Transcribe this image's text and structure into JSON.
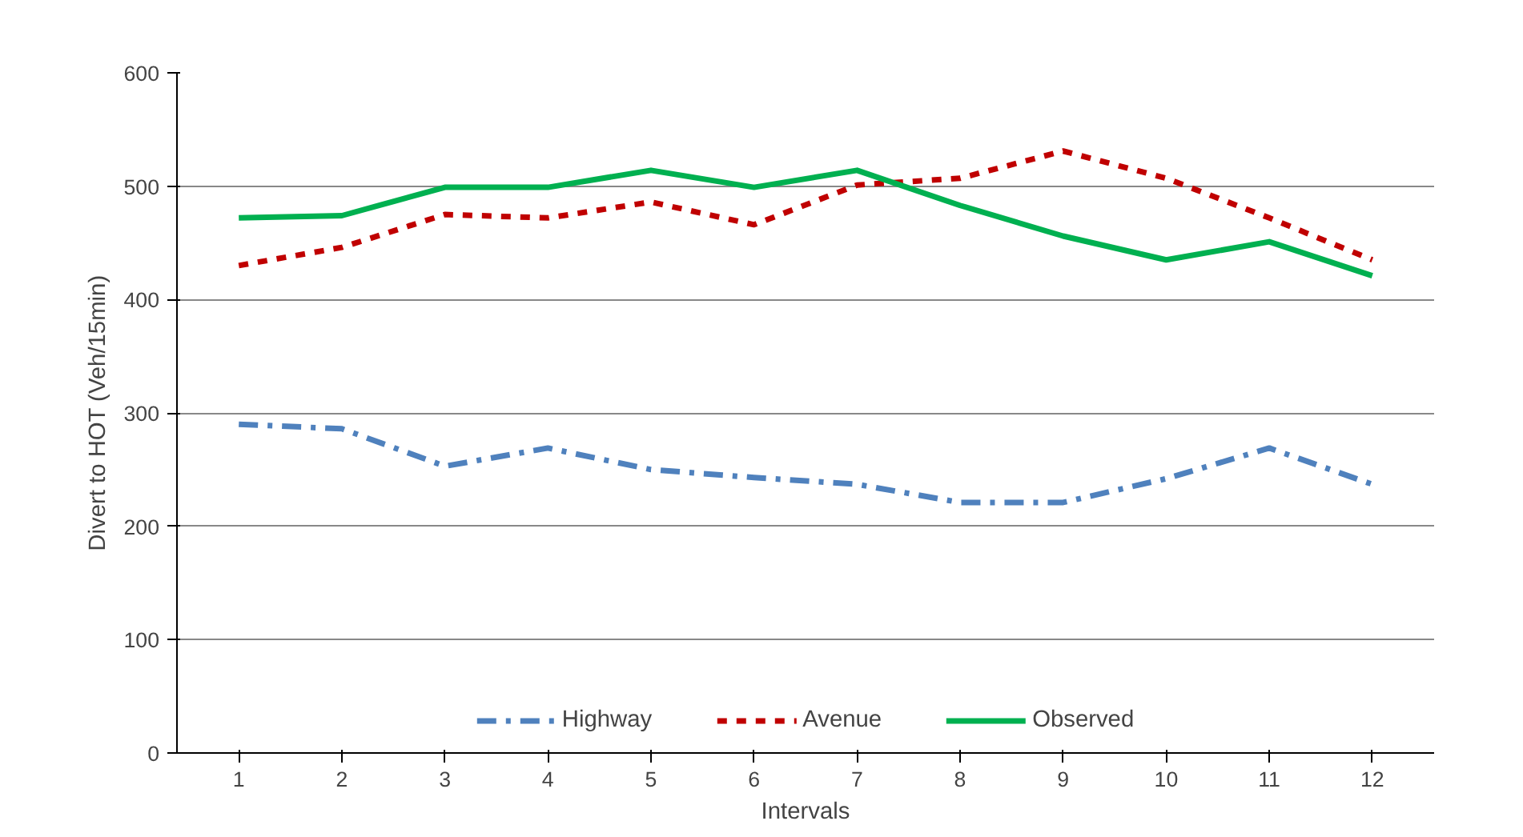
{
  "chart_data": {
    "type": "line",
    "xlabel": "Intervals",
    "ylabel": "Divert to HOT (Veh/15min)",
    "x": [
      1,
      2,
      3,
      4,
      5,
      6,
      7,
      8,
      9,
      10,
      11,
      12
    ],
    "xlim": [
      0.4,
      12.6
    ],
    "xticks": [
      1,
      2,
      3,
      4,
      5,
      6,
      7,
      8,
      9,
      10,
      11,
      12
    ],
    "series": [
      {
        "name": "Highway",
        "color": "#4f81bd",
        "line_style": "dashdot",
        "values": [
          290,
          286,
          253,
          269,
          250,
          243,
          237,
          221,
          221,
          242,
          269,
          237
        ]
      },
      {
        "name": "Avenue",
        "color": "#c00000",
        "line_style": "dashed",
        "values": [
          430,
          446,
          475,
          472,
          486,
          466,
          501,
          507,
          531,
          507,
          472,
          435
        ]
      },
      {
        "name": "Observed",
        "color": "#00b050",
        "line_style": "solid",
        "values": [
          472,
          474,
          499,
          499,
          514,
          499,
          514,
          483,
          456,
          435,
          451,
          421
        ]
      }
    ],
    "ylim": [
      0,
      600
    ],
    "yticks": [
      0,
      100,
      200,
      300,
      400,
      500,
      600
    ],
    "grid": "y",
    "legend": "bottom",
    "marker": "none"
  }
}
